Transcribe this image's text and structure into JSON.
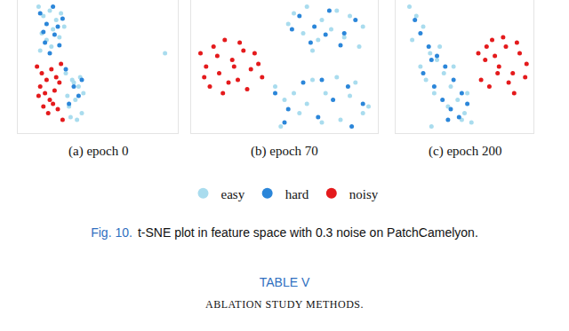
{
  "chart_data": [
    {
      "type": "scatter",
      "title": "(a) epoch 0",
      "xlim": [
        0,
        100
      ],
      "ylim": [
        0,
        100
      ],
      "xticks": [],
      "yticks": [],
      "tick_labels": false,
      "grid": false,
      "series": [
        {
          "name": "easy",
          "color": "#a9dcee",
          "marker": "circle",
          "x": [
            13,
            16,
            20,
            24,
            27,
            15,
            22,
            18,
            26,
            29,
            14,
            21,
            30,
            34,
            38,
            41,
            36,
            32,
            40,
            35,
            31,
            39,
            37,
            33,
            92
          ],
          "y": [
            95,
            88,
            92,
            85,
            90,
            75,
            78,
            70,
            72,
            80,
            62,
            65,
            45,
            40,
            35,
            30,
            25,
            20,
            15,
            38,
            28,
            42,
            10,
            12,
            60
          ]
        },
        {
          "name": "hard",
          "color": "#2b86d9",
          "marker": "circle",
          "x": [
            14,
            18,
            22,
            25,
            28,
            17,
            23,
            20,
            26,
            16,
            35,
            38,
            32,
            40,
            30
          ],
          "y": [
            90,
            82,
            95,
            80,
            86,
            68,
            74,
            60,
            66,
            76,
            35,
            28,
            22,
            40,
            48
          ]
        },
        {
          "name": "noisy",
          "color": "#e41a1c",
          "marker": "circle",
          "x": [
            12,
            15,
            18,
            21,
            24,
            14,
            17,
            20,
            23,
            26,
            16,
            19,
            22,
            13,
            25,
            27,
            28
          ],
          "y": [
            50,
            45,
            40,
            48,
            42,
            35,
            30,
            25,
            32,
            38,
            20,
            15,
            22,
            28,
            18,
            52,
            10
          ]
        }
      ]
    },
    {
      "type": "scatter",
      "title": "(b) epoch 70",
      "xlim": [
        0,
        100
      ],
      "ylim": [
        0,
        100
      ],
      "xticks": [],
      "yticks": [],
      "tick_labels": false,
      "grid": false,
      "series": [
        {
          "name": "easy",
          "color": "#a9dcee",
          "marker": "circle",
          "x": [
            55,
            62,
            70,
            78,
            85,
            92,
            60,
            68,
            75,
            82,
            90,
            52,
            65,
            45,
            50,
            58,
            65,
            72,
            80,
            88,
            95,
            48,
            55,
            62,
            70,
            78,
            85,
            92
          ],
          "y": [
            90,
            95,
            85,
            92,
            88,
            80,
            75,
            70,
            78,
            72,
            65,
            82,
            62,
            35,
            25,
            15,
            40,
            30,
            10,
            38,
            20,
            5,
            30,
            22,
            8,
            42,
            28,
            15
          ]
        },
        {
          "name": "hard",
          "color": "#2b86d9",
          "marker": "circle",
          "x": [
            58,
            66,
            74,
            82,
            88,
            64,
            72,
            80,
            54,
            45,
            52,
            60,
            68,
            76,
            84,
            92,
            50,
            70,
            86
          ],
          "y": [
            88,
            80,
            92,
            75,
            85,
            68,
            74,
            66,
            78,
            30,
            18,
            38,
            12,
            25,
            35,
            22,
            8,
            40,
            5
          ]
        },
        {
          "name": "noisy",
          "color": "#e41a1c",
          "marker": "circle",
          "x": [
            5,
            8,
            12,
            15,
            18,
            22,
            25,
            28,
            32,
            36,
            10,
            14,
            20,
            26,
            30,
            38,
            7,
            17,
            23,
            34
          ],
          "y": [
            60,
            50,
            65,
            45,
            70,
            55,
            40,
            62,
            48,
            52,
            35,
            58,
            38,
            68,
            33,
            42,
            42,
            30,
            50,
            60
          ]
        }
      ]
    },
    {
      "type": "scatter",
      "title": "(c) epoch 200",
      "xlim": [
        0,
        100
      ],
      "ylim": [
        0,
        100
      ],
      "xticks": [],
      "yticks": [],
      "tick_labels": false,
      "grid": false,
      "series": [
        {
          "name": "easy",
          "color": "#a9dcee",
          "marker": "circle",
          "x": [
            10,
            15,
            20,
            12,
            25,
            30,
            35,
            40,
            45,
            50,
            55,
            22,
            28,
            38,
            48,
            18,
            32,
            42,
            52,
            26
          ],
          "y": [
            95,
            88,
            80,
            70,
            60,
            55,
            45,
            35,
            25,
            15,
            8,
            40,
            30,
            20,
            10,
            50,
            65,
            50,
            30,
            5
          ]
        },
        {
          "name": "hard",
          "color": "#2b86d9",
          "marker": "circle",
          "x": [
            14,
            18,
            24,
            30,
            36,
            42,
            48,
            20,
            28,
            34,
            40,
            46,
            52,
            26,
            38
          ],
          "y": [
            85,
            75,
            65,
            58,
            50,
            40,
            30,
            45,
            35,
            25,
            18,
            12,
            22,
            55,
            10
          ]
        },
        {
          "name": "noisy",
          "color": "#e41a1c",
          "marker": "circle",
          "x": [
            60,
            65,
            70,
            75,
            80,
            85,
            90,
            95,
            62,
            68,
            74,
            82,
            88,
            94,
            66,
            78,
            86,
            72
          ],
          "y": [
            60,
            55,
            70,
            50,
            65,
            45,
            60,
            52,
            40,
            35,
            45,
            38,
            68,
            42,
            65,
            72,
            30,
            58
          ]
        }
      ]
    }
  ],
  "caption": {
    "label": "Fig. 10.",
    "text": "t-SNE plot in feature space with 0.3 noise on PatchCamelyon."
  },
  "table": {
    "label": "TABLE V",
    "title": "ABLATION STUDY METHODS."
  }
}
